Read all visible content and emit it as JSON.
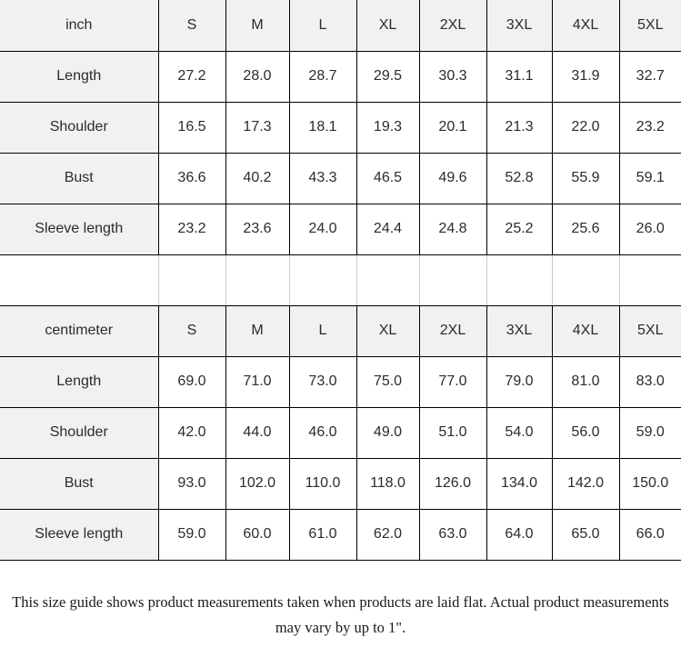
{
  "sizes": [
    "S",
    "M",
    "L",
    "XL",
    "2XL",
    "3XL",
    "4XL",
    "5XL"
  ],
  "tables": [
    {
      "unit": "inch",
      "rows": [
        {
          "label": "Length",
          "values": [
            "27.2",
            "28.0",
            "28.7",
            "29.5",
            "30.3",
            "31.1",
            "31.9",
            "32.7"
          ]
        },
        {
          "label": "Shoulder",
          "values": [
            "16.5",
            "17.3",
            "18.1",
            "19.3",
            "20.1",
            "21.3",
            "22.0",
            "23.2"
          ]
        },
        {
          "label": "Bust",
          "values": [
            "36.6",
            "40.2",
            "43.3",
            "46.5",
            "49.6",
            "52.8",
            "55.9",
            "59.1"
          ]
        },
        {
          "label": "Sleeve length",
          "values": [
            "23.2",
            "23.6",
            "24.0",
            "24.4",
            "24.8",
            "25.2",
            "25.6",
            "26.0"
          ]
        }
      ]
    },
    {
      "unit": "centimeter",
      "rows": [
        {
          "label": "Length",
          "values": [
            "69.0",
            "71.0",
            "73.0",
            "75.0",
            "77.0",
            "79.0",
            "81.0",
            "83.0"
          ]
        },
        {
          "label": "Shoulder",
          "values": [
            "42.0",
            "44.0",
            "46.0",
            "49.0",
            "51.0",
            "54.0",
            "56.0",
            "59.0"
          ]
        },
        {
          "label": "Bust",
          "values": [
            "93.0",
            "102.0",
            "110.0",
            "118.0",
            "126.0",
            "134.0",
            "142.0",
            "150.0"
          ]
        },
        {
          "label": "Sleeve length",
          "values": [
            "59.0",
            "60.0",
            "61.0",
            "62.0",
            "63.0",
            "64.0",
            "65.0",
            "66.0"
          ]
        }
      ]
    }
  ],
  "note": "This size guide shows product measurements taken when products are laid flat. Actual product measurements may vary by up to 1\".",
  "colors": {
    "header_bg": "#f1f1f1",
    "border": "#000000",
    "gap_divider": "#cccccc",
    "text": "#2b2b2b"
  }
}
